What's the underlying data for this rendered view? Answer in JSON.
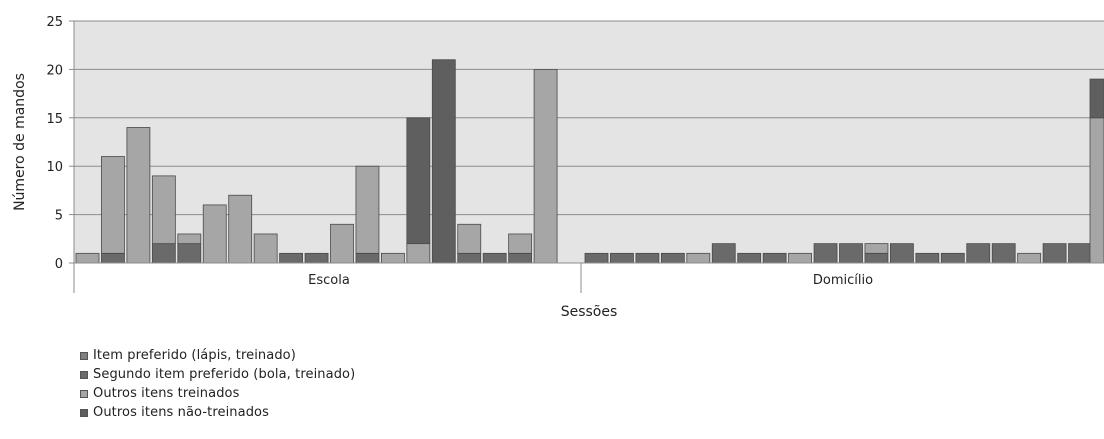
{
  "chart_data": {
    "type": "bar",
    "stacked": true,
    "ylabel": "Número de mandos",
    "xlabel": "Sessões",
    "ylim": [
      0,
      25
    ],
    "yticks": [
      0,
      5,
      10,
      15,
      20,
      25
    ],
    "grid": true,
    "legend_position": "bottom-left",
    "groups": [
      {
        "label": "Escola",
        "count": 20
      },
      {
        "label": "Domicílio",
        "count": 20
      }
    ],
    "series": [
      {
        "name": "Item preferido (lápis, treinado)",
        "color": "#808080",
        "values": [
          0,
          0,
          0,
          0,
          0,
          0,
          0,
          0,
          0,
          0,
          0,
          0,
          0,
          0,
          0,
          0,
          0,
          0,
          0,
          0,
          0,
          0,
          0,
          0,
          0,
          0,
          0,
          0,
          0,
          0,
          0,
          0,
          0,
          0,
          0,
          0,
          0,
          0,
          0,
          0
        ]
      },
      {
        "name": "Segundo item preferido (bola, treinado)",
        "color": "#6a6a6a",
        "values": [
          0,
          1,
          0,
          2,
          2,
          0,
          0,
          0,
          1,
          1,
          0,
          1,
          0,
          0,
          0,
          1,
          1,
          1,
          0,
          0,
          1,
          1,
          1,
          1,
          0,
          2,
          1,
          1,
          0,
          2,
          2,
          1,
          2,
          1,
          1,
          2,
          2,
          0,
          2,
          2
        ]
      },
      {
        "name": "Outros itens treinados",
        "color": "#a6a6a6",
        "values": [
          1,
          10,
          14,
          7,
          1,
          6,
          7,
          3,
          0,
          0,
          4,
          9,
          1,
          2,
          0,
          3,
          0,
          2,
          20,
          0,
          0,
          0,
          0,
          0,
          1,
          0,
          0,
          0,
          1,
          0,
          0,
          1,
          0,
          0,
          0,
          0,
          0,
          1,
          0,
          0
        ]
      },
      {
        "name": "Outros itens não-treinados",
        "color": "#5f5f5f",
        "values": [
          0,
          0,
          0,
          0,
          0,
          0,
          0,
          0,
          0,
          0,
          0,
          0,
          0,
          13,
          21,
          0,
          0,
          0,
          0,
          0,
          0,
          0,
          0,
          0,
          0,
          0,
          0,
          0,
          0,
          0,
          0,
          0,
          0,
          0,
          0,
          0,
          0,
          0,
          0,
          0
        ]
      }
    ],
    "edge_bar": {
      "total": 19,
      "lower_value": 15,
      "upper_value": 4
    }
  }
}
